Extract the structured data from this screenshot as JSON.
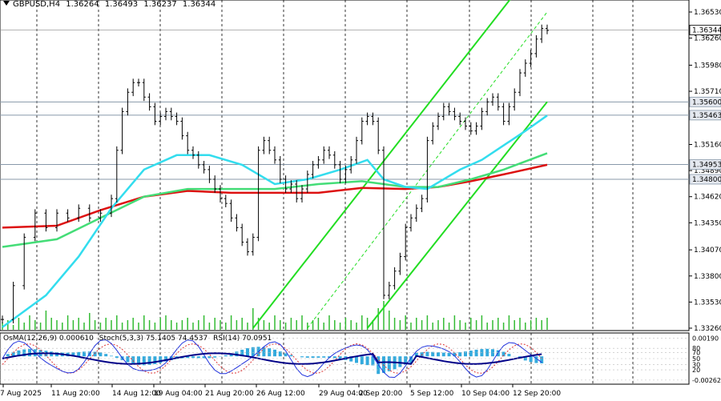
{
  "header": {
    "symbol": "GBPUSD,H4",
    "open": "1.36264",
    "high": "1.36493",
    "low": "1.36237",
    "close": "1.36344"
  },
  "indicators": {
    "macd_label": "OsMA(12,26,9) 0.000610",
    "stoch_label": "Stoch(5,3,3) 75.1405 74.4537",
    "rsi_label": "RSI(14) 70.0951"
  },
  "colors": {
    "candle": "#000000",
    "ma_cyan": "#33ddee",
    "ma_green": "#44dd77",
    "ma_red": "#dd1111",
    "channel": "#22dd22",
    "volume": "#33bb33",
    "osma": "#33aadd",
    "stoch_main": "#2233dd",
    "stoch_signal": "#dd3333",
    "rsi": "#000088"
  },
  "chart_data": {
    "type": "line",
    "title": "GBPUSD,H4",
    "ylim": [
      1.3326,
      1.3653
    ],
    "price_ticks": [
      "1.36530",
      "1.36260",
      "1.35980",
      "1.35710",
      "1.35160",
      "1.34890",
      "1.34620",
      "1.34350",
      "1.34070",
      "1.33800",
      "1.33530",
      "1.33260"
    ],
    "level_labels": [
      {
        "value": "1.35600",
        "price": 1.356,
        "highlight": true
      },
      {
        "value": "1.35463",
        "price": 1.35463,
        "highlight": true
      },
      {
        "value": "1.34953",
        "price": 1.34953,
        "highlight": true
      },
      {
        "value": "1.34800",
        "price": 1.348,
        "highlight": true
      }
    ],
    "last_price": {
      "value": "1.36344",
      "price": 1.36344
    },
    "x_labels": [
      "7 Aug 2025",
      "11 Aug 20:00",
      "14 Aug 12:00",
      "19 Aug 04:00",
      "21 Aug 20:00",
      "26 Aug 12:00",
      "29 Aug 04:00",
      "2 Sep 20:00",
      "5 Sep 12:00",
      "10 Sep 04:00",
      "12 Sep 20:00"
    ],
    "price_path": [
      [
        0,
        1.3335
      ],
      [
        2,
        1.337
      ],
      [
        4,
        1.342
      ],
      [
        6,
        1.3445
      ],
      [
        8,
        1.343
      ],
      [
        10,
        1.3445
      ],
      [
        12,
        1.344
      ],
      [
        14,
        1.345
      ],
      [
        16,
        1.344
      ],
      [
        18,
        1.3445
      ],
      [
        20,
        1.346
      ],
      [
        21,
        1.351
      ],
      [
        22,
        1.355
      ],
      [
        23,
        1.357
      ],
      [
        24,
        1.358
      ],
      [
        25,
        1.358
      ],
      [
        26,
        1.3565
      ],
      [
        27,
        1.3555
      ],
      [
        28,
        1.354
      ],
      [
        29,
        1.3545
      ],
      [
        30,
        1.355
      ],
      [
        31,
        1.3545
      ],
      [
        32,
        1.354
      ],
      [
        33,
        1.3525
      ],
      [
        34,
        1.351
      ],
      [
        35,
        1.3505
      ],
      [
        36,
        1.3495
      ],
      [
        37,
        1.349
      ],
      [
        38,
        1.348
      ],
      [
        39,
        1.347
      ],
      [
        40,
        1.346
      ],
      [
        41,
        1.3455
      ],
      [
        42,
        1.344
      ],
      [
        43,
        1.343
      ],
      [
        44,
        1.3415
      ],
      [
        45,
        1.3405
      ],
      [
        46,
        1.342
      ],
      [
        47,
        1.351
      ],
      [
        48,
        1.352
      ],
      [
        49,
        1.351
      ],
      [
        50,
        1.35
      ],
      [
        51,
        1.348
      ],
      [
        52,
        1.347
      ],
      [
        53,
        1.3475
      ],
      [
        54,
        1.346
      ],
      [
        55,
        1.347
      ],
      [
        56,
        1.3485
      ],
      [
        57,
        1.3495
      ],
      [
        58,
        1.35
      ],
      [
        59,
        1.351
      ],
      [
        60,
        1.3505
      ],
      [
        61,
        1.3495
      ],
      [
        62,
        1.348
      ],
      [
        63,
        1.349
      ],
      [
        64,
        1.35
      ],
      [
        65,
        1.352
      ],
      [
        66,
        1.354
      ],
      [
        67,
        1.3545
      ],
      [
        68,
        1.354
      ],
      [
        69,
        1.351
      ],
      [
        70,
        1.336
      ],
      [
        71,
        1.337
      ],
      [
        72,
        1.3385
      ],
      [
        73,
        1.34
      ],
      [
        74,
        1.343
      ],
      [
        75,
        1.344
      ],
      [
        76,
        1.345
      ],
      [
        77,
        1.346
      ],
      [
        78,
        1.352
      ],
      [
        79,
        1.3535
      ],
      [
        80,
        1.3545
      ],
      [
        81,
        1.3555
      ],
      [
        82,
        1.355
      ],
      [
        83,
        1.3545
      ],
      [
        84,
        1.354
      ],
      [
        85,
        1.3535
      ],
      [
        86,
        1.353
      ],
      [
        87,
        1.3535
      ],
      [
        88,
        1.355
      ],
      [
        89,
        1.356
      ],
      [
        90,
        1.3565
      ],
      [
        91,
        1.3555
      ],
      [
        92,
        1.354
      ],
      [
        93,
        1.3555
      ],
      [
        94,
        1.357
      ],
      [
        95,
        1.359
      ],
      [
        96,
        1.36
      ],
      [
        97,
        1.361
      ],
      [
        98,
        1.3625
      ],
      [
        99,
        1.3636
      ],
      [
        100,
        1.3634
      ]
    ],
    "ma_fast": [
      [
        0,
        1.3327
      ],
      [
        8,
        1.336
      ],
      [
        14,
        1.34
      ],
      [
        20,
        1.345
      ],
      [
        26,
        1.349
      ],
      [
        32,
        1.3505
      ],
      [
        38,
        1.3505
      ],
      [
        44,
        1.3495
      ],
      [
        50,
        1.3475
      ],
      [
        56,
        1.348
      ],
      [
        62,
        1.349
      ],
      [
        67,
        1.35
      ],
      [
        70,
        1.348
      ],
      [
        74,
        1.3472
      ],
      [
        78,
        1.347
      ],
      [
        84,
        1.349
      ],
      [
        88,
        1.35
      ],
      [
        92,
        1.3515
      ],
      [
        96,
        1.353
      ],
      [
        100,
        1.3546
      ]
    ],
    "ma_mid": [
      [
        0,
        1.341
      ],
      [
        10,
        1.3418
      ],
      [
        18,
        1.344
      ],
      [
        26,
        1.3462
      ],
      [
        34,
        1.347
      ],
      [
        42,
        1.347
      ],
      [
        50,
        1.347
      ],
      [
        58,
        1.3475
      ],
      [
        66,
        1.3478
      ],
      [
        74,
        1.3472
      ],
      [
        80,
        1.3472
      ],
      [
        86,
        1.348
      ],
      [
        92,
        1.349
      ],
      [
        100,
        1.3507
      ]
    ],
    "ma_slow": [
      [
        0,
        1.343
      ],
      [
        10,
        1.3432
      ],
      [
        18,
        1.3448
      ],
      [
        26,
        1.3462
      ],
      [
        34,
        1.3468
      ],
      [
        42,
        1.3466
      ],
      [
        50,
        1.3466
      ],
      [
        58,
        1.3466
      ],
      [
        66,
        1.3471
      ],
      [
        74,
        1.347
      ],
      [
        80,
        1.3472
      ],
      [
        86,
        1.3478
      ],
      [
        92,
        1.3485
      ],
      [
        100,
        1.3495
      ]
    ],
    "channel_upper": [
      [
        46,
        1.3326
      ],
      [
        100,
        1.3715
      ]
    ],
    "channel_mid": [
      [
        56,
        1.3326
      ],
      [
        100,
        1.3653
      ]
    ],
    "channel_lower": [
      [
        67,
        1.3326
      ],
      [
        100,
        1.356
      ]
    ],
    "volume": [
      3,
      4,
      2,
      5,
      3,
      6,
      4,
      3,
      8,
      5,
      4,
      3,
      6,
      4,
      5,
      3,
      7,
      4,
      3,
      5,
      4,
      6,
      3,
      4,
      5,
      3,
      6,
      4,
      3,
      5,
      6,
      4,
      3,
      4,
      5,
      3,
      4,
      6,
      3,
      5,
      4,
      3,
      6,
      4,
      5,
      3,
      9,
      5,
      4,
      3,
      6,
      4,
      3,
      5,
      4,
      6,
      3,
      4,
      5,
      3,
      6,
      4,
      3,
      5,
      4,
      3,
      6,
      5,
      4,
      9,
      12,
      8,
      5,
      4,
      6,
      3,
      5,
      4,
      6,
      3,
      4,
      5,
      3,
      6,
      4,
      3,
      5,
      4,
      6,
      3,
      4,
      5,
      3,
      6,
      4,
      5,
      3,
      4,
      5,
      4,
      5
    ],
    "indicator_ticks": [
      "0.00190",
      "80",
      "70",
      "50",
      "30",
      "20",
      "-0.00262"
    ]
  }
}
